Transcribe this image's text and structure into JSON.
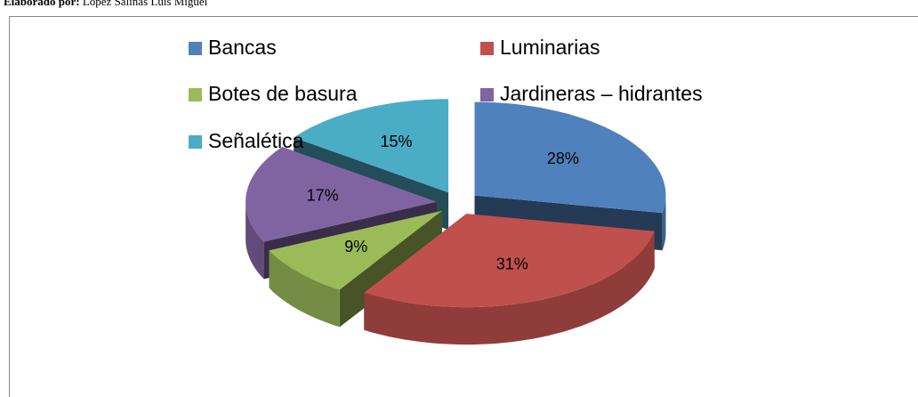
{
  "caption": {
    "label": "Elaborado por:",
    "text": "López Salinas Luis Miguel"
  },
  "chart_data": {
    "type": "pie",
    "categories": [
      "Bancas",
      "Luminarias",
      "Botes de basura",
      "Jardineras – hidrantes",
      "Señalética"
    ],
    "values": [
      28,
      31,
      9,
      17,
      15
    ],
    "value_labels": [
      "28%",
      "31%",
      "9%",
      "17%",
      "15%"
    ],
    "colors": [
      "#4f81bd",
      "#c0504d",
      "#9bbb59",
      "#8064a2",
      "#4bacc6"
    ],
    "exploded": true,
    "legend": "top"
  }
}
